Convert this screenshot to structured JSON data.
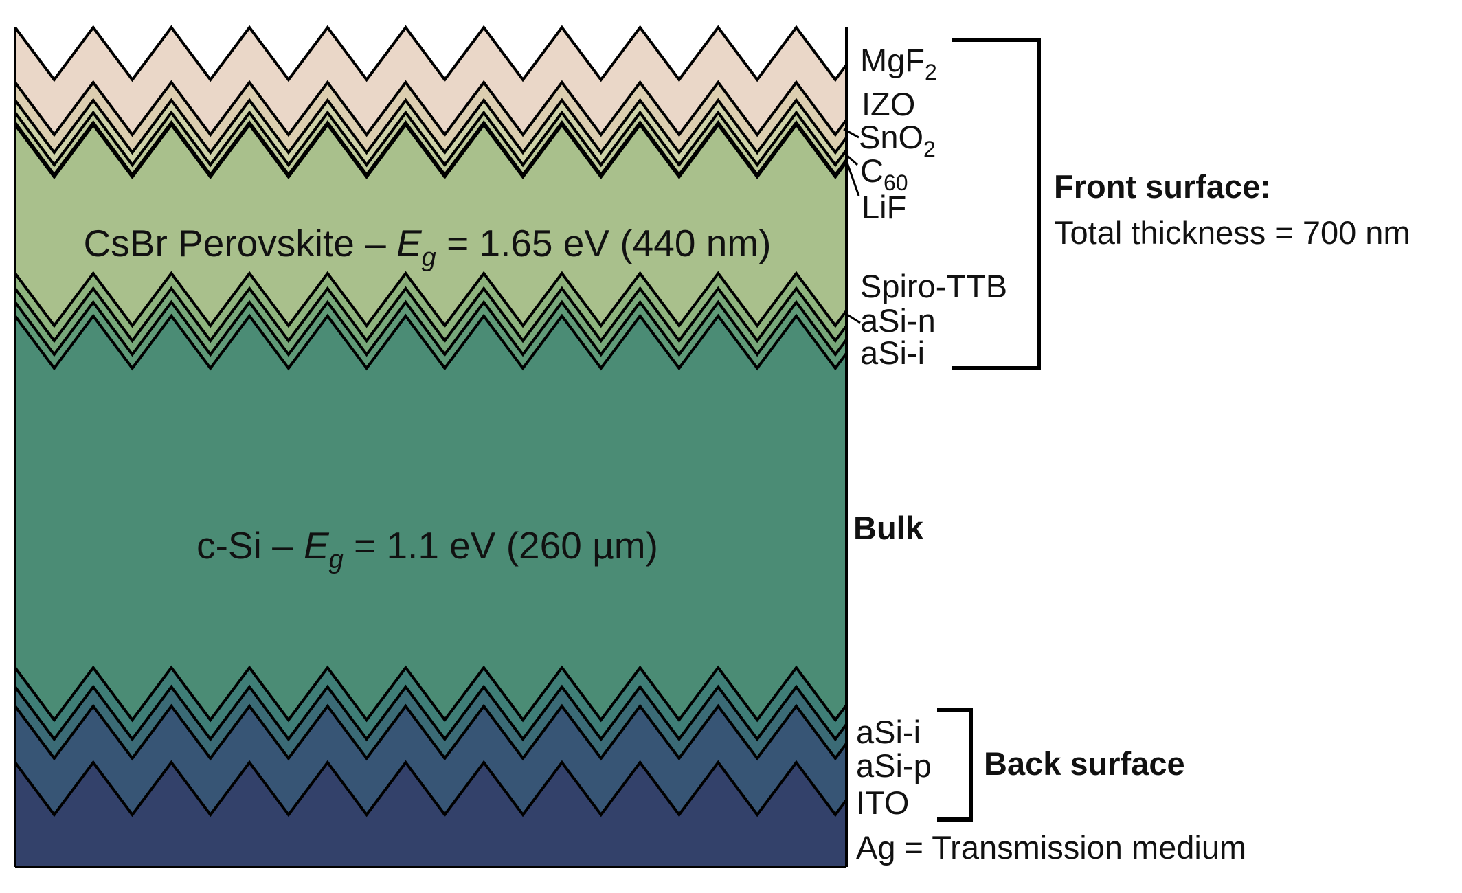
{
  "layers": [
    {
      "name": "MgF2",
      "color": "#ead7c8"
    },
    {
      "name": "IZO",
      "color": "#dcceb0"
    },
    {
      "name": "SnO2",
      "color": "#ced2a8"
    },
    {
      "name": "C60",
      "color": "#bdc99a"
    },
    {
      "name": "LiF",
      "color": "#a9c08c"
    },
    {
      "name": "CsBr Perovskite",
      "color": "#8fb47e"
    },
    {
      "name": "Spiro-TTB",
      "color": "#78a87a"
    },
    {
      "name": "aSi-n",
      "color": "#5f9a78"
    },
    {
      "name": "aSi-i",
      "color": "#4b8c75"
    },
    {
      "name": "c-Si",
      "color": "#3f7e77"
    },
    {
      "name": "aSi-i (back)",
      "color": "#3b6b76"
    },
    {
      "name": "aSi-p",
      "color": "#375575"
    },
    {
      "name": "ITO",
      "color": "#33416a"
    },
    {
      "name": "Ag",
      "color": "#2e2f55"
    }
  ],
  "labels": {
    "mgf2_base": "MgF",
    "mgf2_sub": "2",
    "izo": "IZO",
    "sno2_base": "SnO",
    "sno2_sub": "2",
    "c60_base": "C",
    "c60_sub": "60",
    "lif": "LiF",
    "spiro": "Spiro-TTB",
    "asi_n": "aSi-n",
    "asi_i_front": "aSi-i",
    "asi_i_back": "aSi-i",
    "asi_p": "aSi-p",
    "ito": "ITO",
    "ag": "Ag = Transmission medium"
  },
  "perovskite": {
    "prefix": "CsBr Perovskite – ",
    "e": "E",
    "g": "g",
    "suffix": " = 1.65 eV (440 nm)"
  },
  "csi": {
    "prefix": "c-Si – ",
    "e": "E",
    "g": "g",
    "suffix": " = 1.1 eV (260 µm)"
  },
  "front": {
    "title": "Front surface:",
    "subtitle": "Total thickness = 700 nm"
  },
  "bulk": {
    "title": "Bulk"
  },
  "back": {
    "title": "Back surface"
  }
}
